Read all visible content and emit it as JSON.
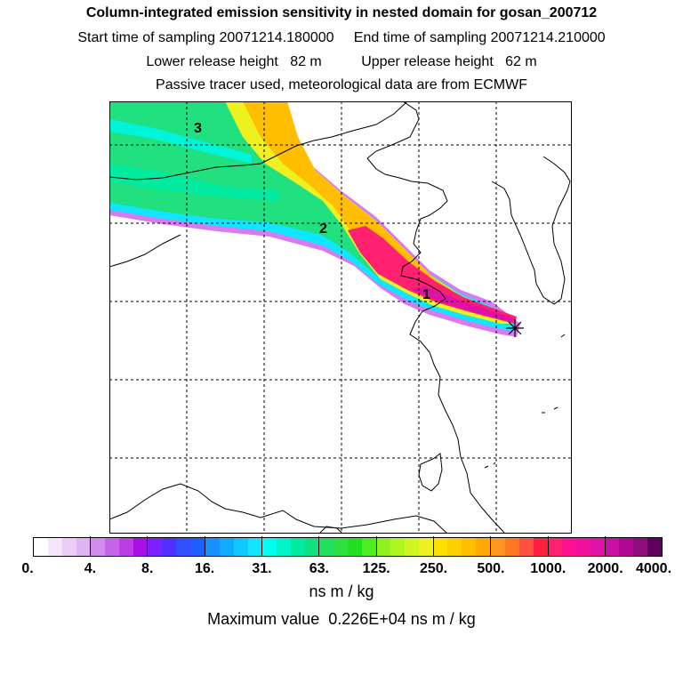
{
  "header": {
    "title": "Column-integrated emission sensitivity in nested domain for gosan_200712",
    "start_label": "Start time of sampling 20071214.180000",
    "end_label": "End time of sampling 20071214.210000",
    "lower_label": "Lower release height   82 m",
    "upper_label": "Upper release height   62 m",
    "tracer_line": "Passive tracer used, meteorological data are from ECMWF"
  },
  "map": {
    "markers": [
      "1",
      "2",
      "3"
    ],
    "receptor_symbol": "✳"
  },
  "colorbar": {
    "ticks": [
      "0.",
      "4.",
      "8.",
      "16.",
      "31.",
      "63.",
      "125.",
      "250.",
      "500.",
      "1000.",
      "2000.",
      "4000."
    ],
    "colors": [
      "#ffffff",
      "#f5e6fa",
      "#ebcdf6",
      "#e0b4f2",
      "#d28ced",
      "#c664ea",
      "#bb3ee7",
      "#aa10e4",
      "#7d20ff",
      "#5030ff",
      "#3050ff",
      "#1e60ff",
      "#1890ff",
      "#10aaff",
      "#10c8ff",
      "#10e6ff",
      "#00ffee",
      "#00f5c8",
      "#00eaa0",
      "#10e080",
      "#20e060",
      "#30e040",
      "#20e020",
      "#50ee20",
      "#90f020",
      "#b0f520",
      "#d0f520",
      "#eef020",
      "#ffe000",
      "#ffd000",
      "#ffbf00",
      "#ffaa00",
      "#ff9620",
      "#ff7820",
      "#ff5040",
      "#ff2040",
      "#ff2070",
      "#ff1090",
      "#f010a0",
      "#e010a8",
      "#c810a8",
      "#b00890",
      "#900a80",
      "#600060"
    ],
    "unit": "ns m / kg",
    "max_label": "Maximum value  0.226E+04 ns m / kg"
  },
  "colors": {
    "plume_core": "#ff2070",
    "plume_edge": "#cc44ff",
    "coastline": "#000000",
    "grid": "#000000"
  }
}
